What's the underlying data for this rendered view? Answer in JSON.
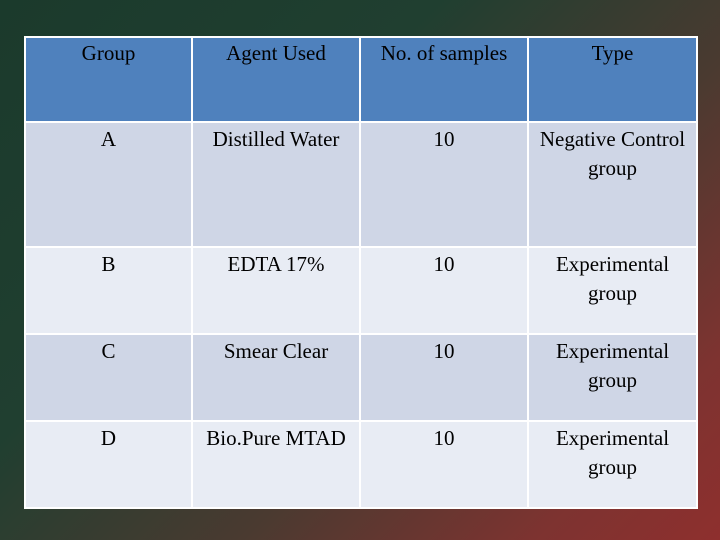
{
  "table": {
    "headers": [
      "Group",
      "Agent Used",
      "No. of samples",
      "Type"
    ],
    "rows": [
      [
        "A",
        "Distilled Water",
        "10",
        "Negative Control group"
      ],
      [
        "B",
        "EDTA 17%",
        "10",
        "Experimental group"
      ],
      [
        "C",
        "Smear Clear",
        "10",
        "Experimental group"
      ],
      [
        "D",
        "Bio.Pure MTAD",
        "10",
        "Experimental group"
      ]
    ]
  },
  "colors": {
    "header_fill": "#4f81bd",
    "row_fill_dark": "#cfd6e6",
    "row_fill_light": "#e8ecf4",
    "background_start": "#1b3a2c",
    "background_end": "#8e2f2e"
  }
}
